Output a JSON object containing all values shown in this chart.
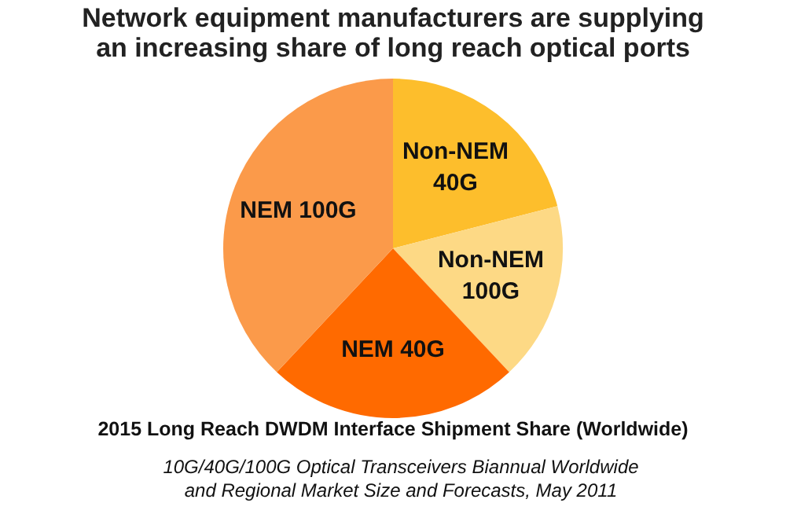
{
  "chart_data": {
    "type": "pie",
    "title": "Network equipment manufacturers are supplying an increasing share of long reach optical ports",
    "subtitle": "2015 Long Reach DWDM Interface Shipment Share (Worldwide)",
    "categories": [
      "Non-NEM 40G",
      "Non-NEM 100G",
      "NEM 40G",
      "NEM 100G"
    ],
    "values": [
      21,
      17,
      24,
      38
    ],
    "colors": [
      "#fdbe2c",
      "#fdd985",
      "#ff6a00",
      "#fb9a4a"
    ],
    "legend": false,
    "annotations": [
      "10G/40G/100G Optical Transceivers Biannual Worldwide and Regional Market Size and Forecasts, May 2011"
    ]
  }
}
